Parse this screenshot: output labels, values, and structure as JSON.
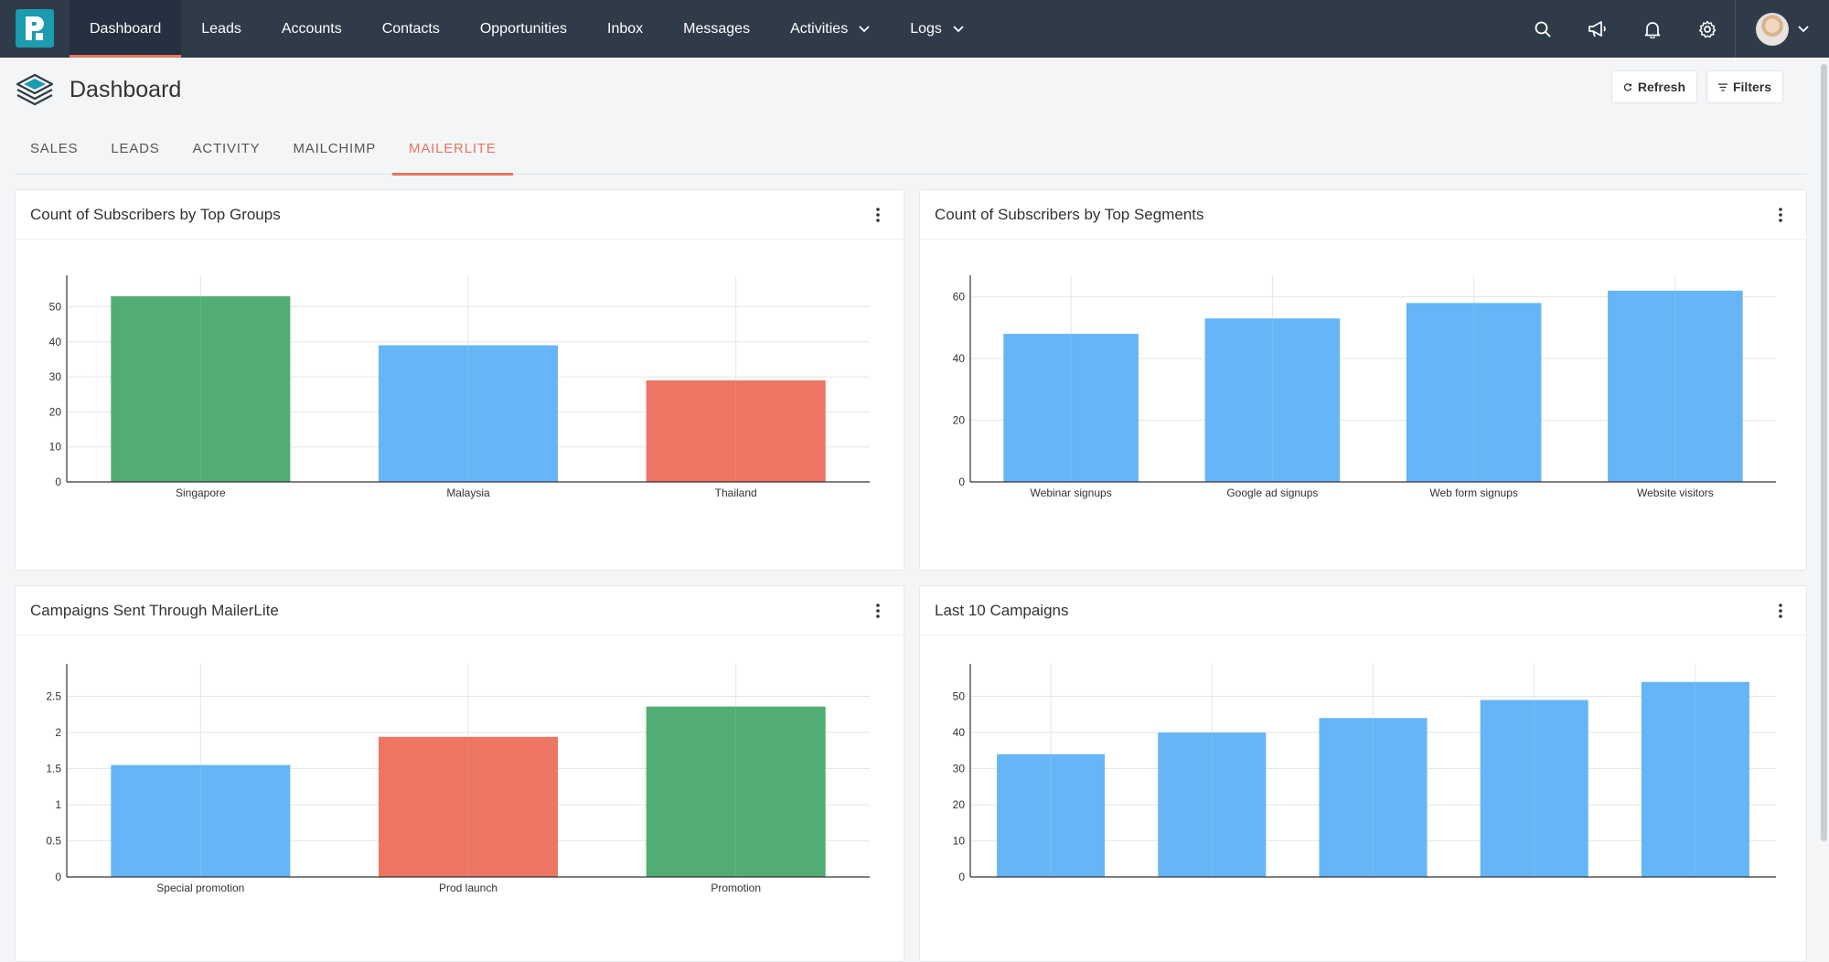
{
  "nav": {
    "items": [
      {
        "label": "Dashboard",
        "active": true,
        "dropdown": false
      },
      {
        "label": "Leads",
        "active": false,
        "dropdown": false
      },
      {
        "label": "Accounts",
        "active": false,
        "dropdown": false
      },
      {
        "label": "Contacts",
        "active": false,
        "dropdown": false
      },
      {
        "label": "Opportunities",
        "active": false,
        "dropdown": false
      },
      {
        "label": "Inbox",
        "active": false,
        "dropdown": false
      },
      {
        "label": "Messages",
        "active": false,
        "dropdown": false
      },
      {
        "label": "Activities",
        "active": false,
        "dropdown": true
      },
      {
        "label": "Logs",
        "active": false,
        "dropdown": true
      }
    ],
    "right_icons": [
      "search-icon",
      "megaphone-icon",
      "bell-icon",
      "gear-icon"
    ]
  },
  "page": {
    "title": "Dashboard",
    "refresh_label": "Refresh",
    "filters_label": "Filters"
  },
  "tabs": [
    {
      "label": "SALES",
      "active": false
    },
    {
      "label": "LEADS",
      "active": false
    },
    {
      "label": "ACTIVITY",
      "active": false
    },
    {
      "label": "MAILCHIMP",
      "active": false
    },
    {
      "label": "MAILERLITE",
      "active": true
    }
  ],
  "colors": {
    "green": "#51ad74",
    "blue": "#66b5f6",
    "red": "#ec7563",
    "accent": "#e8765d",
    "nav_bg": "#2f3b48"
  },
  "chart_data": [
    {
      "type": "bar",
      "title": "Count of Subscribers by Top Groups",
      "categories": [
        "Singapore",
        "Malaysia",
        "Thailand"
      ],
      "values": [
        53,
        39,
        29
      ],
      "bar_colors": [
        "#51ad74",
        "#66b5f6",
        "#ec7563"
      ],
      "yticks": [
        "0",
        "10",
        "20",
        "30",
        "40",
        "50"
      ],
      "ylim": [
        0,
        59
      ],
      "grid": true
    },
    {
      "type": "bar",
      "title": "Count of Subscribers by Top Segments",
      "categories": [
        "Webinar signups",
        "Google ad signups",
        "Web form signups",
        "Website visitors"
      ],
      "values": [
        48,
        53,
        58,
        62
      ],
      "bar_colors": [
        "#66b5f6",
        "#66b5f6",
        "#66b5f6",
        "#66b5f6"
      ],
      "yticks": [
        "0",
        "20",
        "40",
        "60"
      ],
      "ylim": [
        0,
        67
      ],
      "grid": true
    },
    {
      "type": "bar",
      "title": "Campaigns Sent Through MailerLite",
      "categories": [
        "Special promotion",
        "Prod launch",
        "Promotion"
      ],
      "values": [
        1.55,
        1.94,
        2.36
      ],
      "bar_colors": [
        "#66b5f6",
        "#ec7563",
        "#51ad74"
      ],
      "yticks": [
        "0",
        "0.5",
        "1",
        "1.5",
        "2",
        "2.5"
      ],
      "ylim": [
        0,
        2.95
      ],
      "grid": true
    },
    {
      "type": "bar",
      "title": "Last 10 Campaigns",
      "categories": [
        "",
        "",
        "",
        "",
        ""
      ],
      "values": [
        34,
        40,
        44,
        49,
        54
      ],
      "bar_colors": [
        "#66b5f6",
        "#66b5f6",
        "#66b5f6",
        "#66b5f6",
        "#66b5f6"
      ],
      "yticks": [
        "0",
        "10",
        "20",
        "30",
        "40",
        "50"
      ],
      "ylim": [
        0,
        59
      ],
      "grid": true
    }
  ]
}
